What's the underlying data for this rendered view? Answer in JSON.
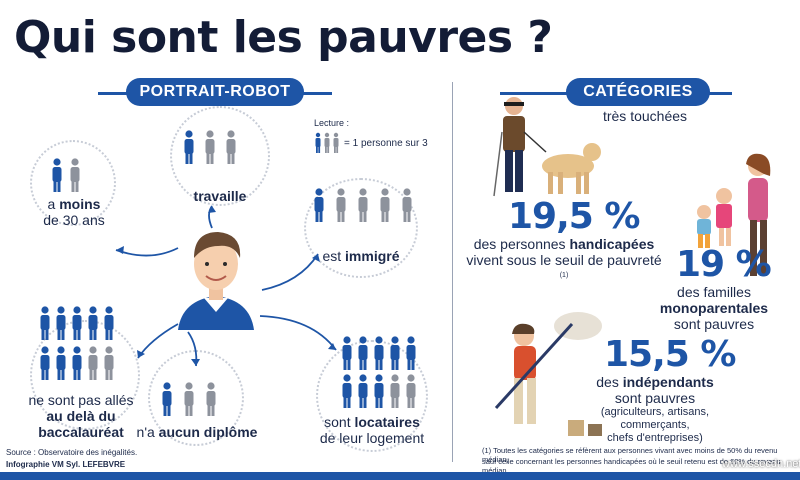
{
  "title": "Qui sont les pauvres ?",
  "portrait": {
    "header": "PORTRAIT-ROBOT",
    "legend": {
      "label": "Lecture :",
      "text": "= 1 personne sur 3"
    },
    "items": [
      {
        "pre": "a ",
        "bold": "moins",
        "line2": "de 30 ans"
      },
      {
        "bold": "travaille"
      },
      {
        "pre": "est ",
        "bold": "immigré"
      },
      {
        "line1": "ne sont pas allés",
        "bold": "au delà du baccalauréat"
      },
      {
        "pre": "n'a ",
        "bold": "aucun diplôme"
      },
      {
        "pre": "sont ",
        "bold": "locataires",
        "line2": "de leur logement"
      }
    ],
    "source": "Source : Observatoire des inégalités.",
    "credit": "Infographie VM Syl. LEFEBVRE"
  },
  "categories": {
    "header": "CATÉGORIES",
    "subtitle": "très touchées",
    "handicap": {
      "pct": "19,5 %",
      "line1_pre": "des personnes ",
      "line1_bold": "handicapées",
      "line2": "vivent sous le seuil de pauvreté",
      "note": "(1)"
    },
    "mono": {
      "pct": "19 %",
      "line1_pre": "des familles ",
      "line1_bold": "monoparentales",
      "line2": "sont pauvres"
    },
    "indep": {
      "pct": "15,5 %",
      "line1_pre": "des ",
      "line1_bold": "indépendants",
      "line2": "sont pauvres",
      "line3": "(agriculteurs, artisans, commerçants,",
      "line4": "chefs d'entreprises)"
    },
    "footnote1": "(1) Toutes les catégories se réfèrent aux personnes vivant avec moins de 50% du revenu médian,",
    "footnote2": "sauf celle concernant les personnes handicapées où le seuil retenu est de 60% du revenu médian"
  },
  "watermark": "www.ssecdn.net",
  "colors": {
    "blue": "#1e55a6",
    "grey": "#8d929c",
    "dark": "#131c36"
  }
}
